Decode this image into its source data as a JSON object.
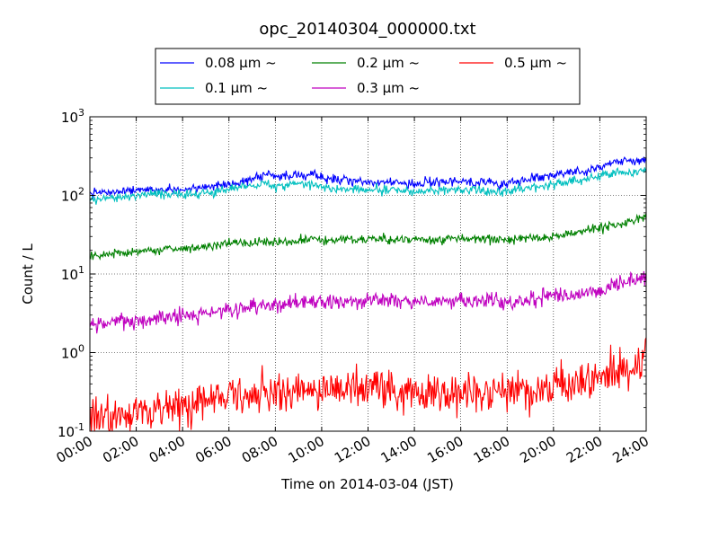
{
  "chart_data": {
    "type": "line",
    "title": "opc_20140304_000000.txt",
    "xlabel": "Time on 2014-03-04 (JST)",
    "ylabel": "Count / L",
    "yscale": "log",
    "ylim": [
      0.1,
      1000
    ],
    "xlim": [
      "00:00",
      "24:00"
    ],
    "grid": true,
    "legend_position": "top",
    "x_ticks": [
      "00:00",
      "02:00",
      "04:00",
      "06:00",
      "08:00",
      "10:00",
      "12:00",
      "14:00",
      "16:00",
      "18:00",
      "20:00",
      "22:00",
      "24:00"
    ],
    "y_ticks": [
      {
        "value": 0.1,
        "base": "10",
        "exp": "-1"
      },
      {
        "value": 1,
        "base": "10",
        "exp": "0"
      },
      {
        "value": 10,
        "base": "10",
        "exp": "1"
      },
      {
        "value": 100,
        "base": "10",
        "exp": "2"
      },
      {
        "value": 1000,
        "base": "10",
        "exp": "3"
      }
    ],
    "x_hours": [
      0,
      1,
      2,
      3,
      4,
      5,
      6,
      7,
      7.5,
      8,
      9,
      9.5,
      10,
      11,
      12,
      13,
      14,
      15,
      16,
      17,
      18,
      19,
      20,
      21,
      22,
      22.5,
      23,
      23.5,
      24
    ],
    "series": [
      {
        "name": "0.08 μm ~",
        "color": "#0000ff",
        "noise": 0.03,
        "values": [
          105,
          110,
          115,
          118,
          120,
          125,
          140,
          160,
          185,
          175,
          180,
          190,
          165,
          155,
          150,
          148,
          140,
          145,
          150,
          145,
          140,
          160,
          180,
          200,
          230,
          260,
          280,
          270,
          290
        ]
      },
      {
        "name": "0.1 μm ~",
        "color": "#00bfbf",
        "noise": 0.03,
        "values": [
          90,
          95,
          100,
          103,
          105,
          108,
          120,
          135,
          145,
          130,
          140,
          135,
          125,
          120,
          118,
          115,
          110,
          115,
          118,
          115,
          112,
          125,
          140,
          155,
          175,
          195,
          200,
          195,
          205
        ]
      },
      {
        "name": "0.2 μm ~",
        "color": "#008000",
        "noise": 0.03,
        "values": [
          16,
          18,
          19,
          20,
          21,
          22,
          24,
          25,
          26,
          25,
          27,
          28,
          27,
          27,
          28,
          28,
          27,
          27,
          28,
          28,
          27,
          29,
          31,
          34,
          38,
          42,
          45,
          48,
          52
        ]
      },
      {
        "name": "0.3 μm ~",
        "color": "#bf00bf",
        "noise": 0.05,
        "values": [
          2.2,
          2.4,
          2.6,
          2.7,
          2.9,
          3.1,
          3.5,
          3.8,
          4.0,
          4.0,
          4.2,
          4.3,
          4.3,
          4.3,
          4.5,
          4.8,
          4.6,
          4.4,
          4.6,
          4.6,
          4.5,
          4.8,
          5.1,
          5.6,
          6.2,
          7.0,
          7.8,
          8.5,
          9.3
        ]
      },
      {
        "name": "0.5 μm ~",
        "color": "#ff0000",
        "noise": 0.13,
        "values": [
          0.16,
          0.14,
          0.17,
          0.19,
          0.22,
          0.24,
          0.27,
          0.29,
          0.3,
          0.3,
          0.32,
          0.34,
          0.35,
          0.34,
          0.35,
          0.36,
          0.33,
          0.32,
          0.33,
          0.32,
          0.31,
          0.34,
          0.37,
          0.41,
          0.45,
          0.55,
          0.6,
          0.65,
          0.85
        ]
      }
    ]
  }
}
